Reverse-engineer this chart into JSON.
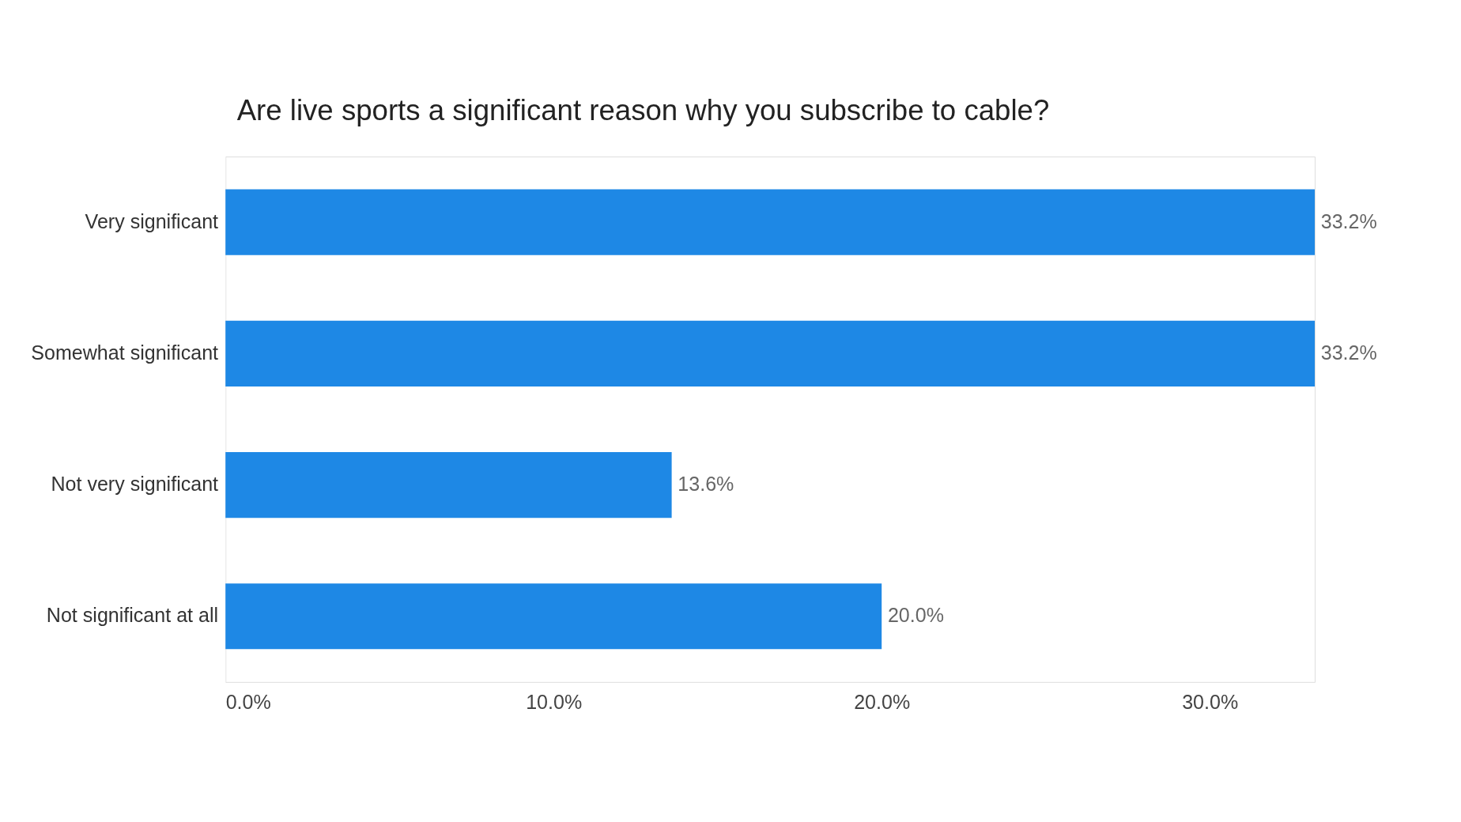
{
  "chart_data": {
    "type": "bar",
    "orientation": "horizontal",
    "title": "Are live sports a significant reason why you subscribe to cable?",
    "categories": [
      "Very significant",
      "Somewhat significant",
      "Not very significant",
      "Not significant at all"
    ],
    "values": [
      33.2,
      33.2,
      13.6,
      20.0
    ],
    "value_labels": [
      "33.2%",
      "33.2%",
      "13.6%",
      "20.0%"
    ],
    "color": "#1e88e5",
    "xlim": [
      0,
      33.2
    ],
    "xticks": [
      {
        "value": 0,
        "label": "0.0%"
      },
      {
        "value": 10,
        "label": "10.0%"
      },
      {
        "value": 20,
        "label": "20.0%"
      },
      {
        "value": 30,
        "label": "30.0%"
      }
    ],
    "grid": false
  }
}
